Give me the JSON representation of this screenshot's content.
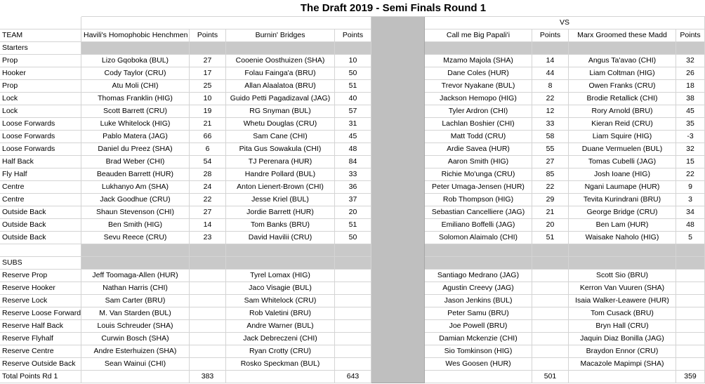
{
  "title": "The Draft 2019 - Semi Finals Round 1",
  "vs": "VS",
  "header": {
    "team_label": "TEAM",
    "teams": [
      {
        "name": "Havili's Homophobic Henchmen",
        "points_label": "Points"
      },
      {
        "name": "Burnin' Bridges",
        "points_label": "Points"
      },
      {
        "name": "Call me Big Papali'i",
        "points_label": "Points"
      },
      {
        "name": "Marx Groomed these Madd",
        "points_label": "Points"
      }
    ]
  },
  "starters_label": "Starters",
  "starters": [
    {
      "position": "Prop",
      "picks": [
        [
          "Lizo Gqoboka (BUL)",
          27
        ],
        [
          "Cooenie Oosthuizen (SHA)",
          10
        ],
        [
          "Mzamo Majola (SHA)",
          14
        ],
        [
          "Angus Ta'avao (CHI)",
          32
        ]
      ]
    },
    {
      "position": "Hooker",
      "picks": [
        [
          "Cody Taylor (CRU)",
          17
        ],
        [
          "Folau Fainga'a (BRU)",
          50
        ],
        [
          "Dane Coles (HUR)",
          44
        ],
        [
          "Liam Coltman (HIG)",
          26
        ]
      ]
    },
    {
      "position": "Prop",
      "picks": [
        [
          "Atu Moli (CHI)",
          25
        ],
        [
          "Allan Alaalatoa (BRU)",
          51
        ],
        [
          "Trevor Nyakane (BUL)",
          8
        ],
        [
          "Owen Franks (CRU)",
          18
        ]
      ]
    },
    {
      "position": "Lock",
      "picks": [
        [
          "Thomas Franklin (HIG)",
          10
        ],
        [
          "Guido Petti Pagadizaval (JAG)",
          40
        ],
        [
          "Jackson Hemopo (HIG)",
          22
        ],
        [
          "Brodie Retallick (CHI)",
          38
        ]
      ]
    },
    {
      "position": "Lock",
      "picks": [
        [
          "Scott Barrett (CRU)",
          19
        ],
        [
          "RG Snyman (BUL)",
          57
        ],
        [
          "Tyler Ardron (CHI)",
          12
        ],
        [
          "Rory Arnold (BRU)",
          45
        ]
      ]
    },
    {
      "position": "Loose Forwards",
      "picks": [
        [
          "Luke Whitelock (HIG)",
          21
        ],
        [
          "Whetu Douglas (CRU)",
          31
        ],
        [
          "Lachlan Boshier (CHI)",
          33
        ],
        [
          "Kieran Reid (CRU)",
          35
        ]
      ]
    },
    {
      "position": "Loose Forwards",
      "picks": [
        [
          "Pablo Matera (JAG)",
          66
        ],
        [
          "Sam Cane (CHI)",
          45
        ],
        [
          "Matt Todd (CRU)",
          58
        ],
        [
          "Liam Squire (HIG)",
          -3
        ]
      ]
    },
    {
      "position": "Loose Forwards",
      "picks": [
        [
          "Daniel du Preez (SHA)",
          6
        ],
        [
          "Pita Gus Sowakula (CHI)",
          48
        ],
        [
          "Ardie Savea (HUR)",
          55
        ],
        [
          "Duane Vermuelen (BUL)",
          32
        ]
      ]
    },
    {
      "position": "Half Back",
      "picks": [
        [
          "Brad Weber (CHI)",
          54
        ],
        [
          "TJ Perenara (HUR)",
          84
        ],
        [
          "Aaron Smith (HIG)",
          27
        ],
        [
          "Tomas Cubelli (JAG)",
          15
        ]
      ]
    },
    {
      "position": "Fly Half",
      "picks": [
        [
          "Beauden Barrett (HUR)",
          28
        ],
        [
          "Handre Pollard (BUL)",
          33
        ],
        [
          "Richie Mo'unga (CRU)",
          85
        ],
        [
          "Josh Ioane (HIG)",
          22
        ]
      ]
    },
    {
      "position": "Centre",
      "picks": [
        [
          "Lukhanyo Am (SHA)",
          24
        ],
        [
          "Anton Lienert-Brown (CHI)",
          36
        ],
        [
          "Peter Umaga-Jensen (HUR)",
          22
        ],
        [
          "Ngani Laumape (HUR)",
          9
        ]
      ]
    },
    {
      "position": "Centre",
      "picks": [
        [
          "Jack Goodhue (CRU)",
          22
        ],
        [
          "Jesse Kriel (BUL)",
          37
        ],
        [
          "Rob Thompson (HIG)",
          29
        ],
        [
          "Tevita Kurindrani (BRU)",
          3
        ]
      ]
    },
    {
      "position": "Outside Back",
      "picks": [
        [
          "Shaun Stevenson (CHI)",
          27
        ],
        [
          "Jordie Barrett (HUR)",
          20
        ],
        [
          "Sebastian Cancelliere (JAG)",
          21
        ],
        [
          "George Bridge (CRU)",
          34
        ]
      ]
    },
    {
      "position": "Outside Back",
      "picks": [
        [
          "Ben Smith (HIG)",
          14
        ],
        [
          "Tom Banks (BRU)",
          51
        ],
        [
          "Emiliano Boffelli (JAG)",
          20
        ],
        [
          "Ben Lam (HUR)",
          48
        ]
      ]
    },
    {
      "position": "Outside Back",
      "picks": [
        [
          "Sevu Reece (CRU)",
          23
        ],
        [
          "David Havilii (CRU)",
          50
        ],
        [
          "Solomon Alaimalo (CHI)",
          51
        ],
        [
          "Waisake Naholo (HIG)",
          5
        ]
      ]
    }
  ],
  "subs_label": "SUBS",
  "subs": [
    {
      "position": "Reserve Prop",
      "players": [
        "Jeff Toomaga-Allen (HUR)",
        "Tyrel Lomax (HIG)",
        "Santiago Medrano (JAG)",
        "Scott Sio (BRU)"
      ]
    },
    {
      "position": "Reserve Hooker",
      "players": [
        "Nathan Harris (CHI)",
        "Jaco Visagie (BUL)",
        "Agustin Creevy (JAG)",
        "Kerron Van Vuuren (SHA)"
      ]
    },
    {
      "position": "Reserve Lock",
      "players": [
        "Sam Carter (BRU)",
        "Sam Whitelock (CRU)",
        "Jason Jenkins (BUL)",
        "Isaia Walker-Leawere (HUR)"
      ]
    },
    {
      "position": "Reserve Loose Forward",
      "players": [
        "M. Van Starden (BUL)",
        "Rob Valetini (BRU)",
        "Peter Samu (BRU)",
        "Tom Cusack (BRU)"
      ]
    },
    {
      "position": "Reserve Half Back",
      "players": [
        "Louis Schreuder (SHA)",
        "Andre Warner (BUL)",
        "Joe Powell (BRU)",
        "Bryn Hall (CRU)"
      ]
    },
    {
      "position": "Reserve Flyhalf",
      "players": [
        "Curwin Bosch (SHA)",
        "Jack Debreczeni (CHI)",
        "Damian Mckenzie (CHI)",
        "Jaquin Diaz Bonilla (JAG)"
      ]
    },
    {
      "position": "Reserve Centre",
      "players": [
        "Andre Esterhuizen (SHA)",
        "Ryan Crotty (CRU)",
        "Sio Tomkinson (HIG)",
        "Braydon Ennor (CRU)"
      ]
    },
    {
      "position": "Reserve Outside Back",
      "players": [
        "Sean Wainui (CHI)",
        "Rosko Speckman (BUL)",
        "Wes Goosen (HUR)",
        "Macazole Mapimpi (SHA)"
      ]
    }
  ],
  "total": {
    "label": "Total Points Rd 1",
    "values": [
      383,
      643,
      501,
      359
    ]
  }
}
